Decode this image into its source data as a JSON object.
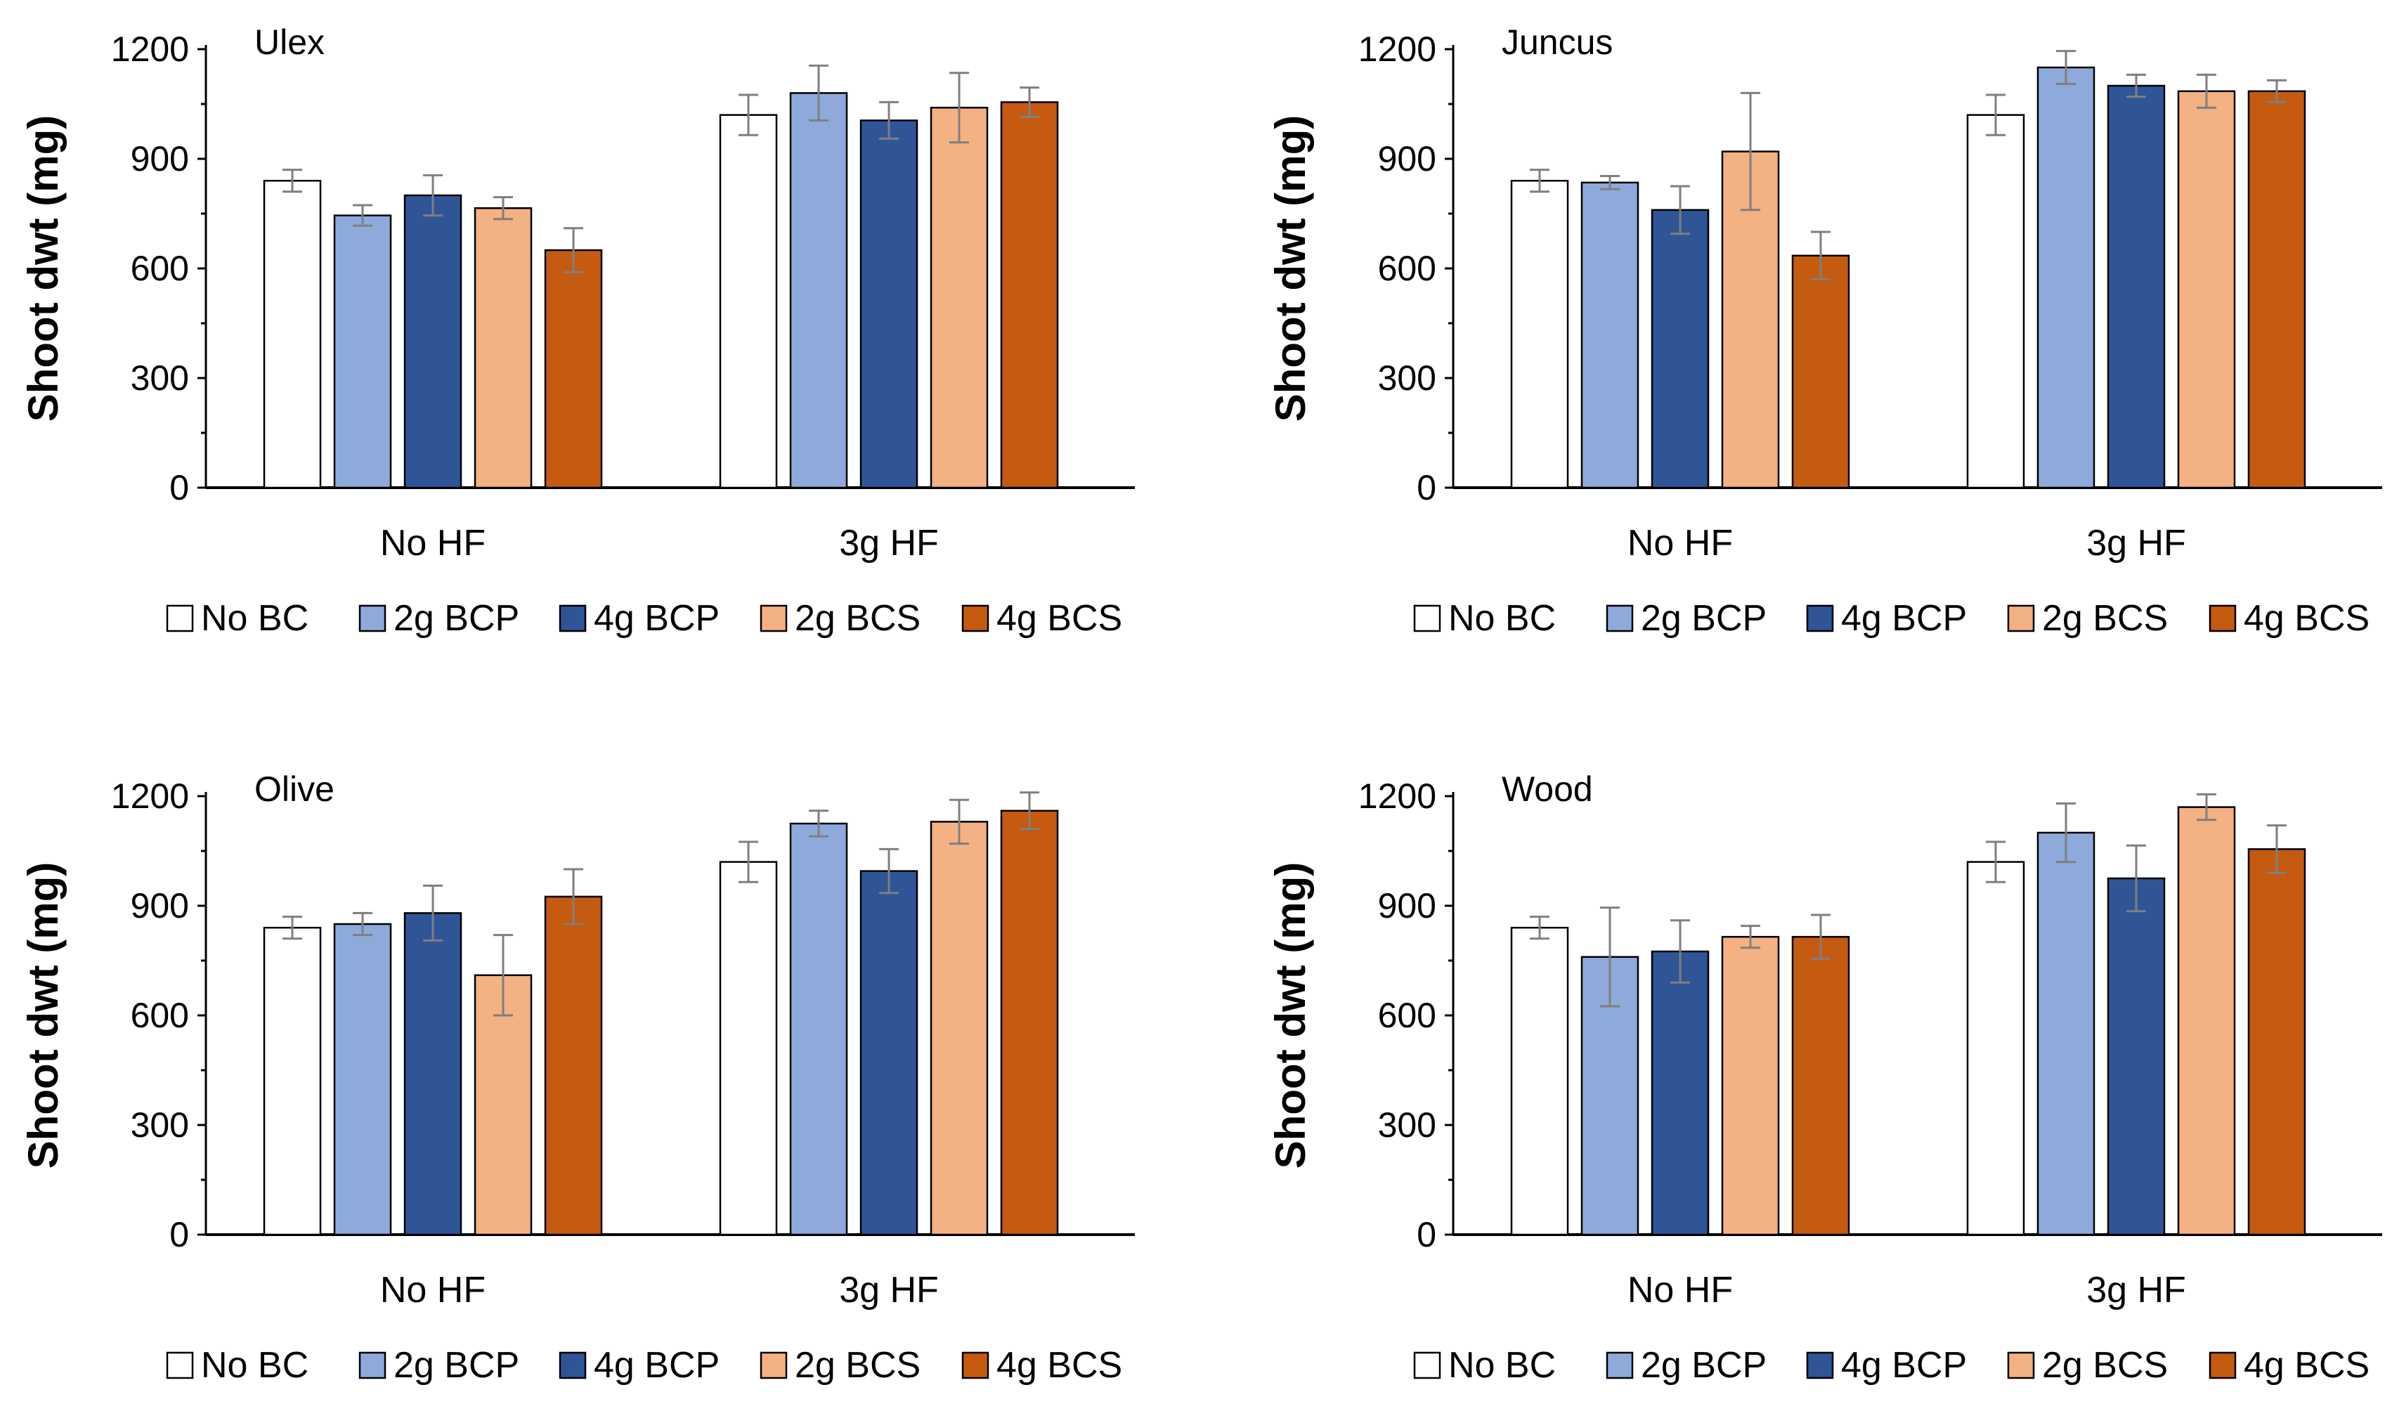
{
  "chart_data": [
    {
      "type": "bar",
      "title": "Ulex",
      "ylabel": "Shoot dwt (mg)",
      "xlabel": "",
      "ylim": [
        0,
        1200
      ],
      "yticks": [
        0,
        300,
        600,
        900,
        1200
      ],
      "categories": [
        "No HF",
        "3g HF"
      ],
      "series": [
        {
          "name": "No BC",
          "values": [
            840,
            1020
          ],
          "errors": [
            30,
            55
          ]
        },
        {
          "name": "2g BCP",
          "values": [
            745,
            1080
          ],
          "errors": [
            28,
            75
          ]
        },
        {
          "name": "4g BCP",
          "values": [
            800,
            1005
          ],
          "errors": [
            55,
            50
          ]
        },
        {
          "name": "2g BCS",
          "values": [
            765,
            1040
          ],
          "errors": [
            30,
            95
          ]
        },
        {
          "name": "4g BCS",
          "values": [
            650,
            1055
          ],
          "errors": [
            60,
            40
          ]
        }
      ],
      "legend_position": "bottom"
    },
    {
      "type": "bar",
      "title": "Juncus",
      "ylabel": "Shoot dwt (mg)",
      "xlabel": "",
      "ylim": [
        0,
        1200
      ],
      "yticks": [
        0,
        300,
        600,
        900,
        1200
      ],
      "categories": [
        "No HF",
        "3g HF"
      ],
      "series": [
        {
          "name": "No BC",
          "values": [
            840,
            1020
          ],
          "errors": [
            30,
            55
          ]
        },
        {
          "name": "2g BCP",
          "values": [
            835,
            1150
          ],
          "errors": [
            18,
            45
          ]
        },
        {
          "name": "4g BCP",
          "values": [
            760,
            1100
          ],
          "errors": [
            65,
            30
          ]
        },
        {
          "name": "2g BCS",
          "values": [
            920,
            1085
          ],
          "errors": [
            160,
            45
          ]
        },
        {
          "name": "4g BCS",
          "values": [
            635,
            1085
          ],
          "errors": [
            65,
            30
          ]
        }
      ],
      "legend_position": "bottom"
    },
    {
      "type": "bar",
      "title": "Olive",
      "ylabel": "Shoot dwt (mg)",
      "xlabel": "",
      "ylim": [
        0,
        1200
      ],
      "yticks": [
        0,
        300,
        600,
        900,
        1200
      ],
      "categories": [
        "No HF",
        "3g HF"
      ],
      "series": [
        {
          "name": "No BC",
          "values": [
            840,
            1020
          ],
          "errors": [
            30,
            55
          ]
        },
        {
          "name": "2g BCP",
          "values": [
            850,
            1125
          ],
          "errors": [
            30,
            35
          ]
        },
        {
          "name": "4g BCP",
          "values": [
            880,
            995
          ],
          "errors": [
            75,
            60
          ]
        },
        {
          "name": "2g BCS",
          "values": [
            710,
            1130
          ],
          "errors": [
            110,
            60
          ]
        },
        {
          "name": "4g BCS",
          "values": [
            925,
            1160
          ],
          "errors": [
            75,
            50
          ]
        }
      ],
      "legend_position": "bottom"
    },
    {
      "type": "bar",
      "title": "Wood",
      "ylabel": "Shoot dwt (mg)",
      "xlabel": "",
      "ylim": [
        0,
        1200
      ],
      "yticks": [
        0,
        300,
        600,
        900,
        1200
      ],
      "categories": [
        "No HF",
        "3g HF"
      ],
      "series": [
        {
          "name": "No BC",
          "values": [
            840,
            1020
          ],
          "errors": [
            30,
            55
          ]
        },
        {
          "name": "2g BCP",
          "values": [
            760,
            1100
          ],
          "errors": [
            135,
            80
          ]
        },
        {
          "name": "4g BCP",
          "values": [
            775,
            975
          ],
          "errors": [
            85,
            90
          ]
        },
        {
          "name": "2g BCS",
          "values": [
            815,
            1170
          ],
          "errors": [
            30,
            35
          ]
        },
        {
          "name": "4g BCS",
          "values": [
            815,
            1055
          ],
          "errors": [
            60,
            65
          ]
        }
      ],
      "legend_position": "bottom"
    }
  ],
  "colors": {
    "No BC": "#ffffff",
    "2g BCP": "#8eaadb",
    "4g BCP": "#2f5597",
    "2g BCS": "#f4b183",
    "4g BCS": "#c55a11",
    "axis": "#000000",
    "error_bar": "#7f7f7f",
    "bar_outline": "#000000"
  }
}
